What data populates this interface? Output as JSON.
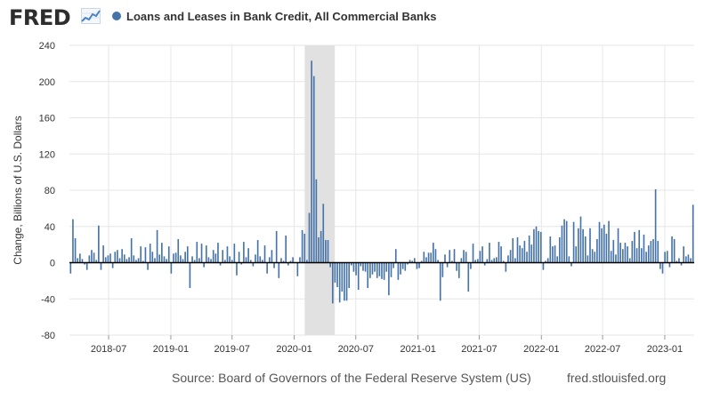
{
  "header": {
    "logo": "FRED",
    "logo_graph_icon": "line-chart-icon"
  },
  "footer": {
    "source": "Source: Board of Governors of the Federal Reserve System (US)",
    "url": "fred.stlouisfed.org"
  },
  "colors": {
    "series": "#4572a7",
    "recession": "#e1e1e1",
    "grid": "#e6e6e6",
    "zero_line": "#000000",
    "logo_line": "#4b82c4"
  },
  "chart_data": {
    "type": "bar",
    "title": "Loans and Leases in Bank Credit, All Commercial Banks",
    "ylabel": "Change, Billions of U.S. Dollars",
    "xlabel": "",
    "ylim": [
      -80,
      240
    ],
    "yticks": [
      -80,
      -40,
      0,
      40,
      80,
      120,
      160,
      200,
      240
    ],
    "xticks": [
      "2018-07",
      "2019-01",
      "2019-07",
      "2020-01",
      "2020-07",
      "2021-01",
      "2021-07",
      "2022-01",
      "2022-07",
      "2023-01"
    ],
    "x_start": "2018-03-07",
    "x_end": "2023-03-29",
    "frequency": "weekly",
    "grid": true,
    "legend": "top-left",
    "recession": {
      "start": "2020-02-01",
      "end": "2020-04-30"
    },
    "series": [
      {
        "name": "Loans and Leases in Bank Credit, All Commercial Banks",
        "values": [
          -12,
          48,
          27,
          5,
          10,
          4,
          -2,
          -8,
          8,
          14,
          11,
          3,
          41,
          -8,
          19,
          6,
          8,
          10,
          -6,
          12,
          14,
          5,
          15,
          9,
          4,
          6,
          27,
          8,
          3,
          5,
          18,
          2,
          17,
          -8,
          21,
          12,
          5,
          36,
          9,
          22,
          7,
          4,
          18,
          -12,
          10,
          11,
          26,
          8,
          4,
          12,
          18,
          -28,
          7,
          3,
          23,
          5,
          21,
          -5,
          19,
          6,
          4,
          14,
          10,
          22,
          -3,
          14,
          3,
          18,
          7,
          3,
          21,
          -14,
          12,
          -2,
          23,
          6,
          16,
          3,
          -4,
          9,
          25,
          7,
          3,
          19,
          -12,
          6,
          14,
          -6,
          35,
          -17,
          5,
          2,
          30,
          -3,
          2,
          6,
          0,
          -15,
          6,
          36,
          32,
          3,
          55,
          223,
          206,
          92,
          28,
          35,
          65,
          25,
          25,
          -5,
          -45,
          -22,
          -27,
          -44,
          -32,
          -42,
          -42,
          -28,
          -3,
          -10,
          -14,
          -30,
          -4,
          -9,
          -10,
          -28,
          -17,
          -13,
          -10,
          -17,
          -15,
          -18,
          -19,
          -10,
          -36,
          -16,
          -6,
          15,
          -19,
          -13,
          -7,
          -9,
          -2,
          3,
          2,
          5,
          -7,
          -6,
          2,
          12,
          6,
          11,
          11,
          22,
          15,
          3,
          -42,
          -16,
          9,
          -5,
          14,
          2,
          15,
          -9,
          -17,
          5,
          14,
          12,
          -32,
          -7,
          21,
          3,
          4,
          13,
          18,
          -3,
          4,
          22,
          3,
          5,
          6,
          23,
          18,
          2,
          -10,
          8,
          14,
          27,
          5,
          28,
          19,
          16,
          24,
          12,
          30,
          20,
          37,
          40,
          35,
          34,
          -8,
          2,
          5,
          29,
          18,
          19,
          7,
          28,
          41,
          48,
          46,
          7,
          -4,
          45,
          18,
          38,
          51,
          37,
          29,
          8,
          38,
          15,
          12,
          26,
          45,
          38,
          42,
          32,
          46,
          13,
          25,
          9,
          38,
          22,
          15,
          22,
          18,
          5,
          24,
          34,
          16,
          36,
          16,
          31,
          12,
          19,
          24,
          26,
          81,
          24,
          -7,
          -12,
          12,
          13,
          -5,
          29,
          26,
          2,
          5,
          -3,
          18,
          7,
          9,
          5,
          64
        ]
      }
    ]
  }
}
